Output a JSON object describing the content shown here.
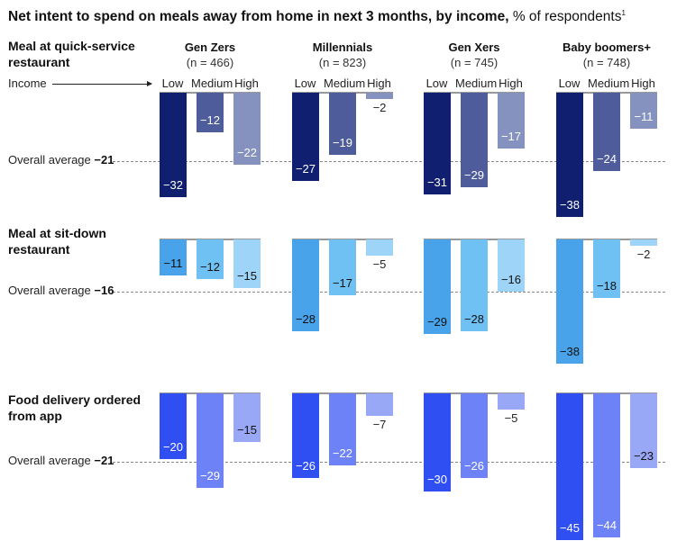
{
  "title": {
    "bold": "Net intent to spend on meals away from home in next 3 months, by income,",
    "normal": " % of respondents",
    "footnote": "1"
  },
  "income_label": "Income",
  "chart_data": {
    "type": "bar",
    "unit": "% of respondents",
    "groups": [
      {
        "name": "Gen Zers",
        "n": "(n = 466)"
      },
      {
        "name": "Millennials",
        "n": "(n = 823)"
      },
      {
        "name": "Gen Xers",
        "n": "(n = 745)"
      },
      {
        "name": "Baby boomers+",
        "n": "(n = 748)"
      }
    ],
    "categories": [
      "Low",
      "Medium",
      "High"
    ],
    "panels": [
      {
        "title": "Meal at quick-service restaurant",
        "average_label": "Overall average",
        "average": "−21",
        "average_value": -21,
        "colors": [
          "#101f6f",
          "#4f5c9b",
          "#8591bf"
        ],
        "label_colors": [
          "#ffffff",
          "#ffffff",
          "#ffffff"
        ],
        "values": [
          [
            -32,
            -12,
            -22
          ],
          [
            -27,
            -19,
            -2
          ],
          [
            -31,
            -29,
            -17
          ],
          [
            -38,
            -24,
            -11
          ]
        ]
      },
      {
        "title": "Meal at sit-down restaurant",
        "average_label": "Overall average",
        "average": "−16",
        "average_value": -16,
        "colors": [
          "#48a3ea",
          "#6fc0f3",
          "#9dd4f7"
        ],
        "label_colors": [
          "#111111",
          "#111111",
          "#111111"
        ],
        "values": [
          [
            -11,
            -12,
            -15
          ],
          [
            -28,
            -17,
            -5
          ],
          [
            -29,
            -28,
            -16
          ],
          [
            -38,
            -18,
            -2
          ]
        ]
      },
      {
        "title": "Food delivery ordered from app",
        "average_label": "Overall average",
        "average": "−21",
        "average_value": -21,
        "colors": [
          "#2f4ff3",
          "#6c82f6",
          "#98a7f6"
        ],
        "label_colors": [
          "#ffffff",
          "#ffffff",
          "#111111"
        ],
        "values": [
          [
            -20,
            -29,
            -15
          ],
          [
            -26,
            -22,
            -7
          ],
          [
            -30,
            -26,
            -5
          ],
          [
            -45,
            -44,
            -23
          ]
        ]
      }
    ]
  }
}
